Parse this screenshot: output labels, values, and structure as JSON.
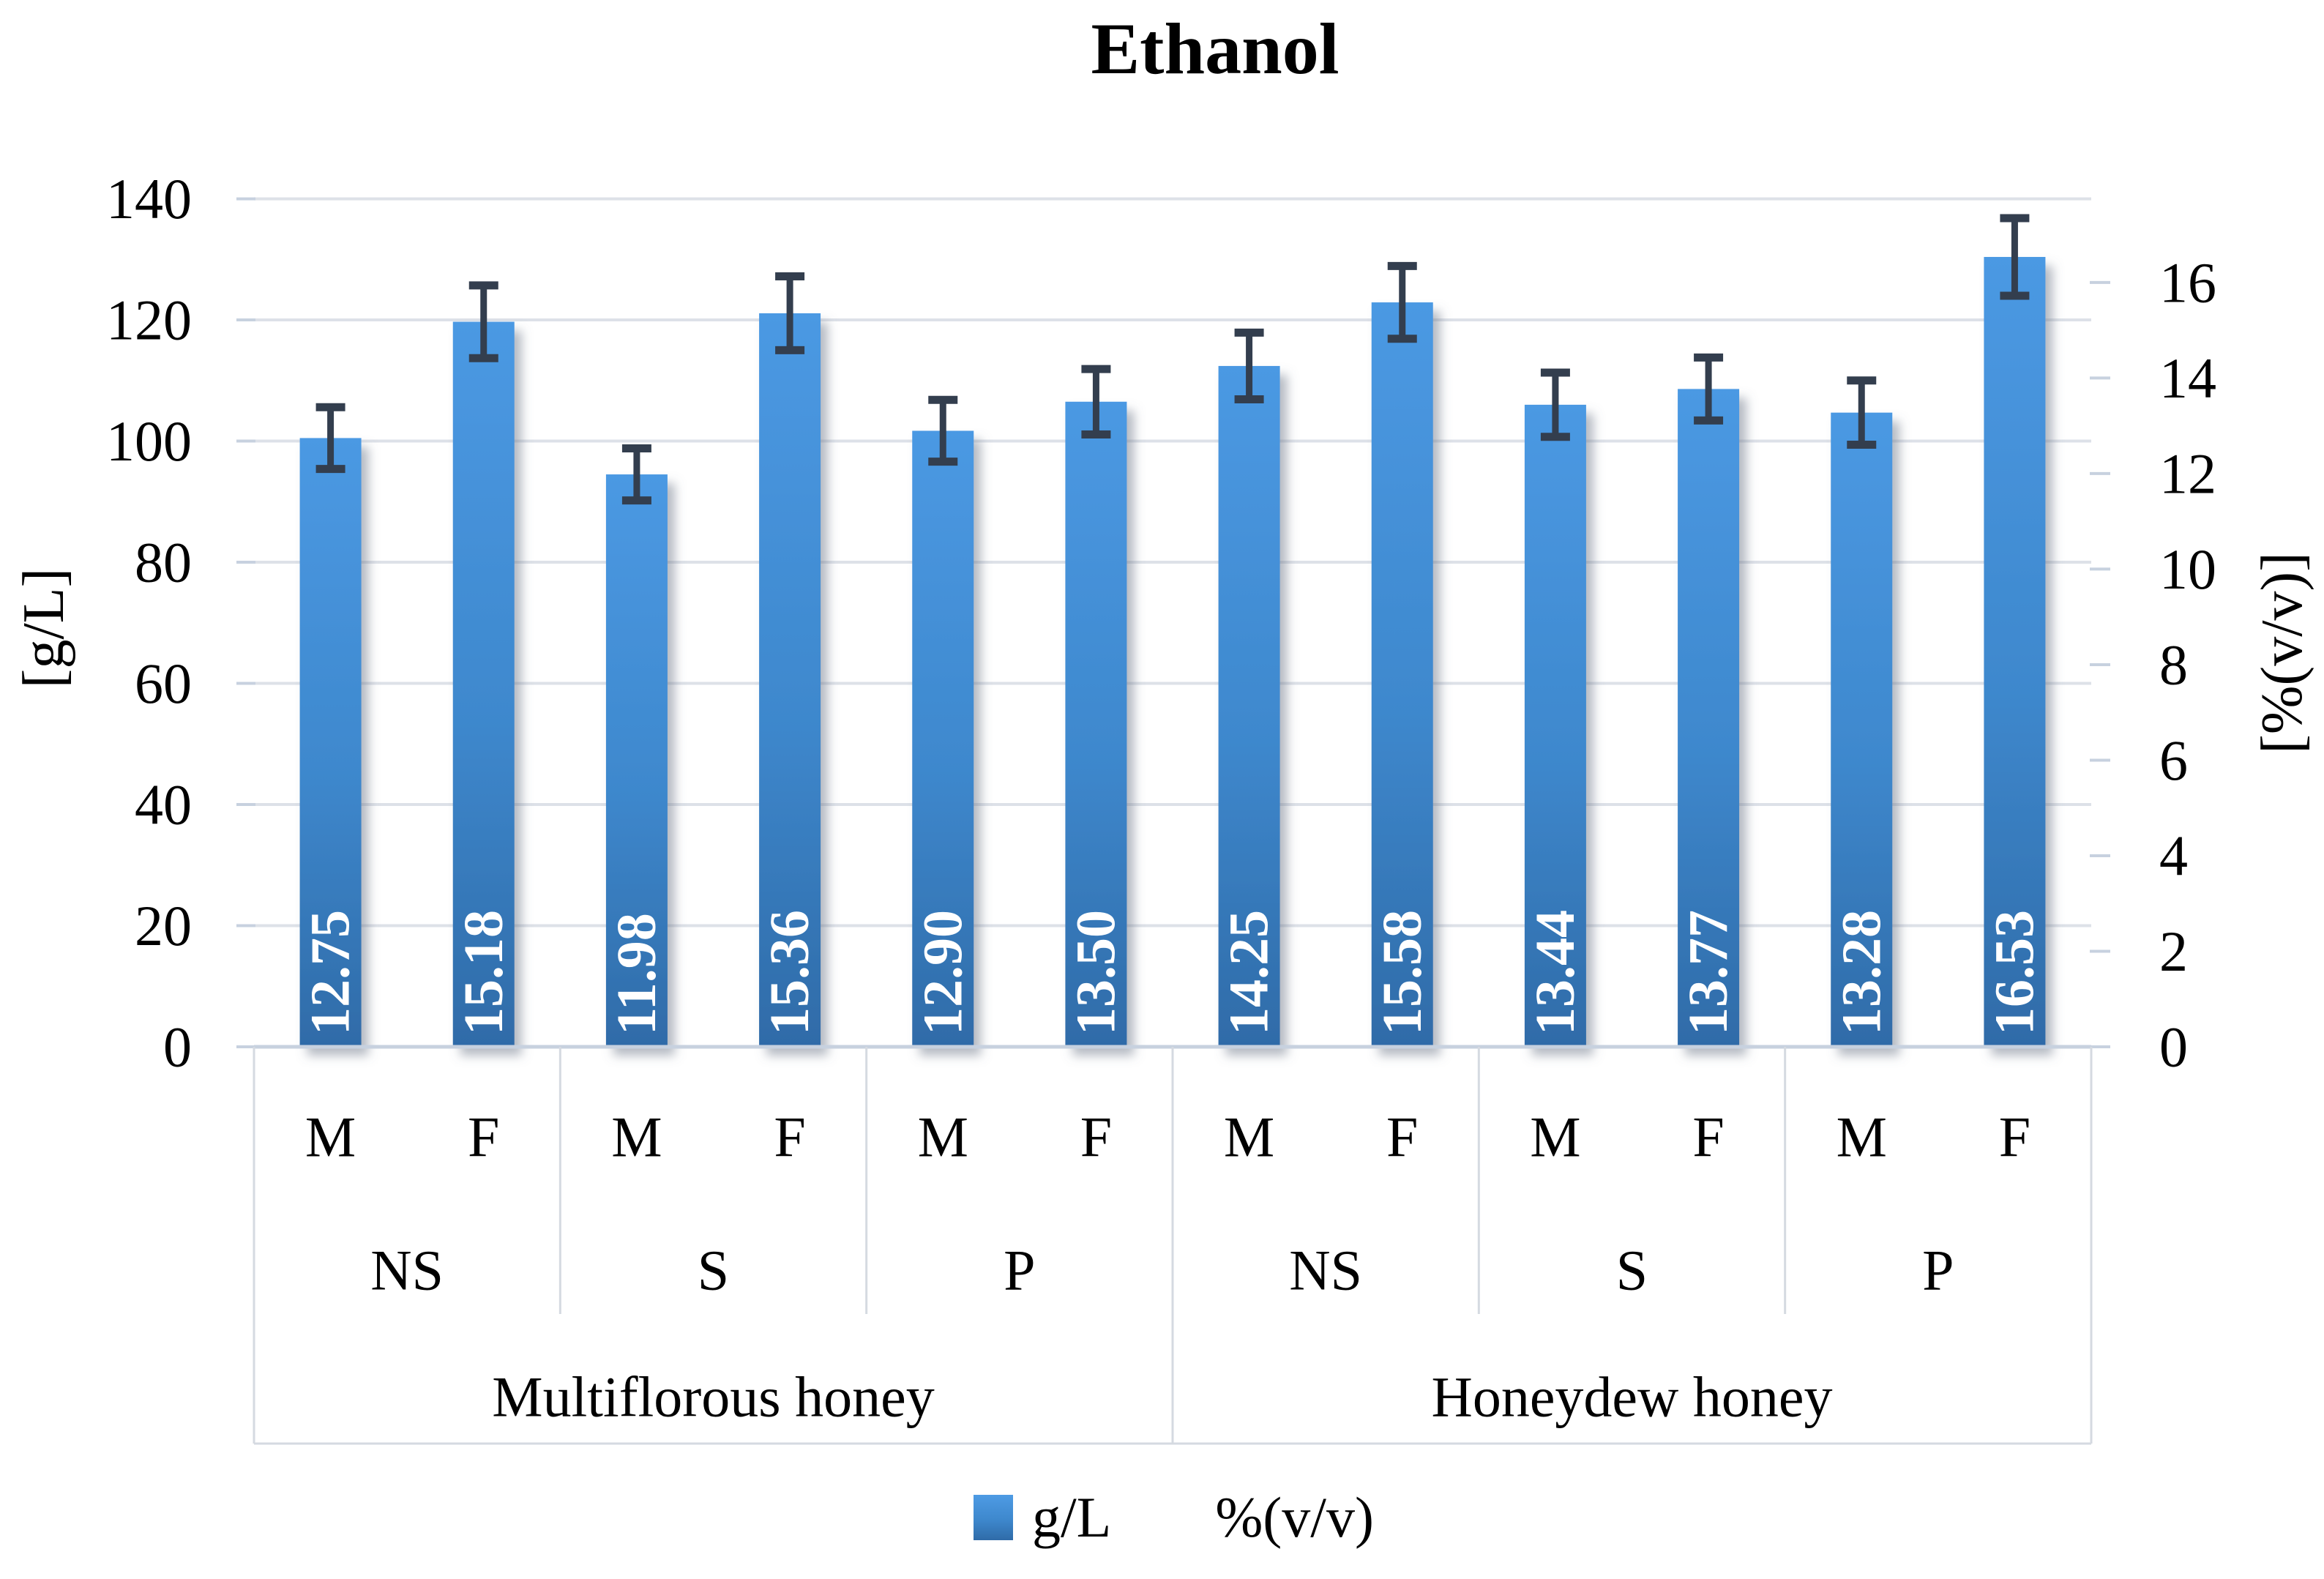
{
  "title": "Ethanol",
  "legend": {
    "series1": "g/L",
    "series2": "%(v/v)"
  },
  "colors": {
    "bar_top": "#4B99E3",
    "bar_mid": "#3E88CD",
    "bar_bottom": "#2F6BA8",
    "error_bar": "#333E4E",
    "gridline": "#DDE1E8",
    "axis_line": "#C7D1DF",
    "table_line": "#D5DAE1",
    "value_label": "#FFFFFF",
    "text": "#000000"
  },
  "chart_data": {
    "type": "bar",
    "title": "Ethanol",
    "left_axis": {
      "label": "[g/L]",
      "min": 0,
      "max": 140,
      "step": 20,
      "ticks": [
        0,
        20,
        40,
        60,
        80,
        100,
        120,
        140
      ]
    },
    "right_axis": {
      "label": "[%(v/v)]",
      "min": 0,
      "max": 16,
      "step": 2,
      "ticks": [
        0,
        2,
        4,
        6,
        8,
        10,
        12,
        14,
        16
      ]
    },
    "gl_per_percent": 7.8866,
    "grid": true,
    "legend_position": "bottom",
    "legend_entries": [
      "g/L",
      "%(v/v)"
    ],
    "top_groups": [
      {
        "label": "Multiflorous honey",
        "subgroups": [
          "NS",
          "S",
          "P"
        ]
      },
      {
        "label": "Honeydew honey",
        "subgroups": [
          "NS",
          "S",
          "P"
        ]
      }
    ],
    "bars": [
      {
        "honey": "Multiflorous honey",
        "treatment": "NS",
        "sex": "M",
        "percent_vv": "12.75",
        "g_per_l": 100.5,
        "error_g_per_l": 5.1
      },
      {
        "honey": "Multiflorous honey",
        "treatment": "NS",
        "sex": "F",
        "percent_vv": "15.18",
        "g_per_l": 119.7,
        "error_g_per_l": 6.0
      },
      {
        "honey": "Multiflorous honey",
        "treatment": "S",
        "sex": "M",
        "percent_vv": "11.98",
        "g_per_l": 94.5,
        "error_g_per_l": 4.3
      },
      {
        "honey": "Multiflorous honey",
        "treatment": "S",
        "sex": "F",
        "percent_vv": "15.36",
        "g_per_l": 121.1,
        "error_g_per_l": 6.1
      },
      {
        "honey": "Multiflorous honey",
        "treatment": "P",
        "sex": "M",
        "percent_vv": "12.90",
        "g_per_l": 101.7,
        "error_g_per_l": 5.1
      },
      {
        "honey": "Multiflorous honey",
        "treatment": "P",
        "sex": "F",
        "percent_vv": "13.50",
        "g_per_l": 106.5,
        "error_g_per_l": 5.4
      },
      {
        "honey": "Honeydew honey",
        "treatment": "NS",
        "sex": "M",
        "percent_vv": "14.25",
        "g_per_l": 112.4,
        "error_g_per_l": 5.5
      },
      {
        "honey": "Honeydew honey",
        "treatment": "NS",
        "sex": "F",
        "percent_vv": "15.58",
        "g_per_l": 122.9,
        "error_g_per_l": 6.0
      },
      {
        "honey": "Honeydew honey",
        "treatment": "S",
        "sex": "M",
        "percent_vv": "13.44",
        "g_per_l": 106.0,
        "error_g_per_l": 5.3
      },
      {
        "honey": "Honeydew honey",
        "treatment": "S",
        "sex": "F",
        "percent_vv": "13.77",
        "g_per_l": 108.6,
        "error_g_per_l": 5.2
      },
      {
        "honey": "Honeydew honey",
        "treatment": "P",
        "sex": "M",
        "percent_vv": "13.28",
        "g_per_l": 104.7,
        "error_g_per_l": 5.3
      },
      {
        "honey": "Honeydew honey",
        "treatment": "P",
        "sex": "F",
        "percent_vv": "16.53",
        "g_per_l": 130.4,
        "error_g_per_l": 6.4
      }
    ]
  }
}
